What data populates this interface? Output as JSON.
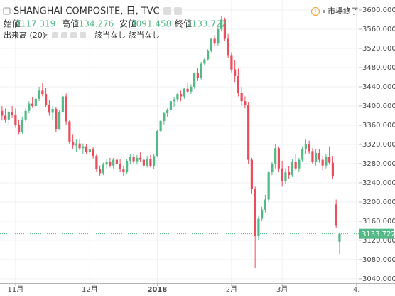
{
  "chart_data": {
    "type": "candlestick",
    "title": "SHANGHAI COMPOSITE, 日, TVC",
    "up_color": "#53b987",
    "down_color": "#eb4d5c",
    "grid": true,
    "open": [
      3390,
      3380,
      3372,
      3388,
      3382,
      3360,
      3346,
      3372,
      3390,
      3405,
      3400,
      3415,
      3432,
      3425,
      3402,
      3386,
      3394,
      3352,
      3388,
      3420,
      3368,
      3326,
      3318,
      3322,
      3312,
      3316,
      3305,
      3310,
      3296,
      3268,
      3260,
      3278,
      3284,
      3276,
      3288,
      3280,
      3268,
      3262,
      3286,
      3294,
      3285,
      3292,
      3288,
      3276,
      3290,
      3275,
      3296,
      3348,
      3369,
      3385,
      3392,
      3410,
      3414,
      3425,
      3420,
      3436,
      3430,
      3440,
      3468,
      3458,
      3488,
      3497,
      3516,
      3540,
      3530,
      3560,
      3580,
      3540,
      3506,
      3476,
      3462,
      3428,
      3410,
      3402,
      3288,
      3228,
      3130,
      3165,
      3184,
      3205,
      3262,
      3280,
      3312,
      3270,
      3244,
      3262,
      3256,
      3284,
      3270,
      3288,
      3310,
      3320,
      3306,
      3284,
      3302,
      3288,
      3276,
      3294,
      3282,
      3195,
      3117.319
    ],
    "high": [
      3400,
      3395,
      3392,
      3400,
      3395,
      3372,
      3378,
      3395,
      3410,
      3418,
      3420,
      3440,
      3448,
      3438,
      3412,
      3400,
      3398,
      3392,
      3428,
      3426,
      3372,
      3340,
      3330,
      3330,
      3322,
      3320,
      3318,
      3315,
      3300,
      3276,
      3282,
      3290,
      3292,
      3292,
      3296,
      3290,
      3276,
      3290,
      3300,
      3300,
      3298,
      3305,
      3294,
      3296,
      3298,
      3300,
      3350,
      3372,
      3388,
      3395,
      3412,
      3418,
      3428,
      3432,
      3438,
      3448,
      3445,
      3470,
      3480,
      3492,
      3500,
      3518,
      3542,
      3548,
      3565,
      3587,
      3584,
      3550,
      3512,
      3496,
      3478,
      3440,
      3420,
      3408,
      3292,
      3232,
      3170,
      3190,
      3215,
      3265,
      3284,
      3320,
      3316,
      3286,
      3270,
      3275,
      3290,
      3300,
      3292,
      3316,
      3330,
      3328,
      3312,
      3310,
      3310,
      3296,
      3300,
      3316,
      3296,
      3205,
      3134.276
    ],
    "low": [
      3370,
      3365,
      3360,
      3375,
      3355,
      3340,
      3342,
      3368,
      3385,
      3396,
      3396,
      3410,
      3420,
      3398,
      3380,
      3370,
      3345,
      3350,
      3384,
      3360,
      3320,
      3310,
      3305,
      3308,
      3300,
      3300,
      3298,
      3290,
      3262,
      3255,
      3256,
      3270,
      3272,
      3270,
      3276,
      3262,
      3255,
      3258,
      3280,
      3278,
      3278,
      3284,
      3270,
      3272,
      3272,
      3268,
      3295,
      3345,
      3362,
      3378,
      3388,
      3398,
      3408,
      3410,
      3415,
      3428,
      3425,
      3436,
      3452,
      3455,
      3484,
      3494,
      3512,
      3524,
      3526,
      3555,
      3535,
      3500,
      3470,
      3450,
      3420,
      3400,
      3395,
      3280,
      3218,
      3062,
      3120,
      3160,
      3178,
      3200,
      3256,
      3270,
      3262,
      3232,
      3238,
      3248,
      3252,
      3266,
      3262,
      3284,
      3300,
      3300,
      3280,
      3276,
      3282,
      3266,
      3270,
      3278,
      3248,
      3146,
      3091.458
    ],
    "close": [
      3380,
      3372,
      3388,
      3382,
      3360,
      3346,
      3372,
      3390,
      3405,
      3400,
      3415,
      3432,
      3425,
      3402,
      3386,
      3394,
      3352,
      3388,
      3420,
      3368,
      3326,
      3318,
      3322,
      3312,
      3316,
      3305,
      3310,
      3296,
      3268,
      3260,
      3278,
      3284,
      3276,
      3288,
      3280,
      3268,
      3262,
      3286,
      3294,
      3285,
      3292,
      3288,
      3276,
      3290,
      3275,
      3296,
      3348,
      3369,
      3385,
      3392,
      3410,
      3414,
      3425,
      3420,
      3436,
      3430,
      3440,
      3468,
      3458,
      3488,
      3497,
      3516,
      3540,
      3530,
      3560,
      3580,
      3540,
      3506,
      3476,
      3462,
      3428,
      3410,
      3402,
      3288,
      3228,
      3130,
      3165,
      3184,
      3205,
      3262,
      3280,
      3312,
      3270,
      3244,
      3262,
      3256,
      3284,
      3270,
      3288,
      3310,
      3320,
      3306,
      3284,
      3302,
      3288,
      3276,
      3294,
      3282,
      3254,
      3152,
      3133.722
    ],
    "xlim": [
      -0.6,
      105.7
    ],
    "xticks": [
      {
        "value": 4,
        "label": "11月"
      },
      {
        "value": 26,
        "label": "12月"
      },
      {
        "value": 46,
        "label": "2018"
      },
      {
        "value": 68,
        "label": "2月"
      },
      {
        "value": 83,
        "label": "3月"
      },
      {
        "value": 105,
        "label": "4."
      }
    ],
    "ylim": [
      3031,
      3620.7
    ],
    "yticks": [
      {
        "value": 3600,
        "label": "3600.000"
      },
      {
        "value": 3560,
        "label": "3560.000"
      },
      {
        "value": 3520,
        "label": "3520.000"
      },
      {
        "value": 3480,
        "label": "3480.000"
      },
      {
        "value": 3440,
        "label": "3440.000"
      },
      {
        "value": 3400,
        "label": "3400.000"
      },
      {
        "value": 3360,
        "label": "3360.000"
      },
      {
        "value": 3320,
        "label": "3320.000"
      },
      {
        "value": 3280,
        "label": "3280.000"
      },
      {
        "value": 3240,
        "label": "3240.000"
      },
      {
        "value": 3200,
        "label": "3200.000"
      },
      {
        "value": 3160,
        "label": "3160.000"
      },
      {
        "value": 3120,
        "label": "3120.000"
      },
      {
        "value": 3080,
        "label": "3080.000"
      },
      {
        "value": 3040,
        "label": "3040.000"
      }
    ]
  },
  "header": {
    "ohlc_labels": [
      "始値",
      "高値",
      "安値",
      "終値"
    ],
    "volume_label": "出来高 (20)",
    "na_values": [
      "該当なし",
      "該当なし"
    ],
    "status": "市場終了"
  }
}
